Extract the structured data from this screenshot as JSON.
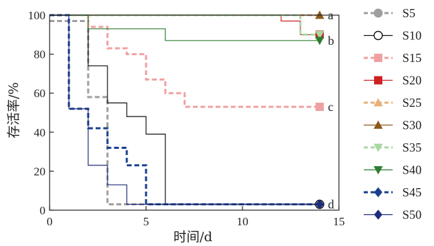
{
  "chart_data": {
    "type": "line",
    "subtype": "step",
    "xlabel": "时间/d",
    "ylabel": "存活率/%",
    "xlim": [
      0,
      15
    ],
    "ylim": [
      0,
      100
    ],
    "xticks": [
      0,
      5,
      10,
      15
    ],
    "yticks": [
      0,
      20,
      40,
      60,
      80,
      100
    ],
    "grid": false,
    "legend_position": "right",
    "series": [
      {
        "name": "S5",
        "color": "#9e9e9e",
        "dash": "dashed",
        "marker": "circle-filled",
        "x": [
          0,
          1,
          2,
          3,
          14
        ],
        "y": [
          97,
          97,
          58,
          3,
          3
        ]
      },
      {
        "name": "S10",
        "color": "#111111",
        "dash": "solid",
        "marker": "circle-open",
        "x": [
          0,
          2,
          3,
          4,
          5,
          6,
          14
        ],
        "y": [
          100,
          74,
          55,
          48,
          39,
          3,
          3
        ]
      },
      {
        "name": "S15",
        "color": "#f0a0a0",
        "dash": "dashed",
        "marker": "square",
        "x": [
          0,
          2,
          3,
          4,
          5,
          6,
          7,
          14
        ],
        "y": [
          100,
          94,
          83,
          80,
          67,
          60,
          53,
          53
        ]
      },
      {
        "name": "S20",
        "color": "#cc2222",
        "dash": "solid",
        "marker": "square",
        "x": [
          0,
          12,
          13,
          14
        ],
        "y": [
          100,
          97,
          90,
          90
        ]
      },
      {
        "name": "S25",
        "color": "#e8b07a",
        "dash": "dashed",
        "marker": "triangle-up",
        "x": [
          0,
          14
        ],
        "y": [
          100,
          100
        ]
      },
      {
        "name": "S30",
        "color": "#8b5a1a",
        "dash": "solid",
        "marker": "triangle-up",
        "x": [
          0,
          14
        ],
        "y": [
          100,
          100
        ]
      },
      {
        "name": "S35",
        "color": "#a8d8a0",
        "dash": "dashed",
        "marker": "triangle-down",
        "x": [
          0,
          13,
          14
        ],
        "y": [
          100,
          90,
          90
        ]
      },
      {
        "name": "S40",
        "color": "#2e7d32",
        "dash": "solid",
        "marker": "triangle-down",
        "x": [
          0,
          2,
          6,
          14
        ],
        "y": [
          100,
          93,
          87,
          87
        ]
      },
      {
        "name": "S45",
        "color": "#1a3f8f",
        "dash": "dashed",
        "marker": "diamond",
        "x": [
          0,
          1,
          2,
          3,
          4,
          5,
          14
        ],
        "y": [
          100,
          52,
          42,
          32,
          23,
          3,
          3
        ]
      },
      {
        "name": "S50",
        "color": "#1e2d7a",
        "dash": "solid",
        "marker": "diamond",
        "x": [
          0,
          1,
          2,
          3,
          4,
          14
        ],
        "y": [
          100,
          52,
          23,
          13,
          3,
          3
        ]
      }
    ],
    "annotations": [
      {
        "text": "a",
        "x": 14,
        "y": 100
      },
      {
        "text": "b",
        "x": 14,
        "y": 87
      },
      {
        "text": "c",
        "x": 14,
        "y": 53
      },
      {
        "text": "d",
        "x": 14,
        "y": 3
      }
    ]
  }
}
